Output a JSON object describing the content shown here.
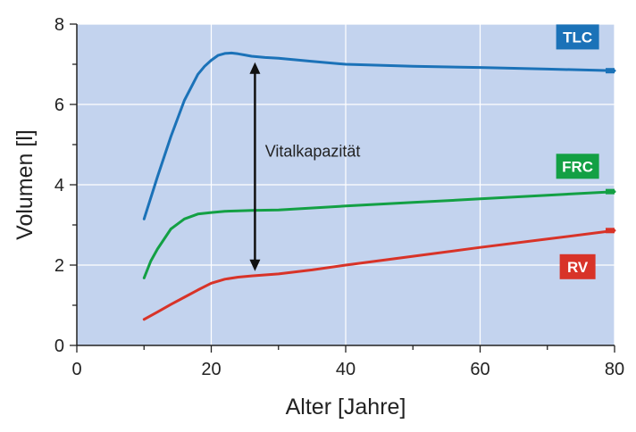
{
  "chart_data": {
    "type": "line",
    "xlabel": "Alter  [Jahre]",
    "ylabel": "Volumen [l]",
    "xlim": [
      0,
      80
    ],
    "ylim": [
      0,
      8
    ],
    "x_ticks": [
      0,
      20,
      40,
      60,
      80
    ],
    "y_ticks": [
      0,
      2,
      4,
      6,
      8
    ],
    "grid": true,
    "background": "#c3d3ee",
    "series": [
      {
        "name": "TLC",
        "color": "#1b72b8",
        "x": [
          10,
          12,
          14,
          16,
          18,
          19,
          20,
          21,
          22,
          23,
          24,
          25,
          26,
          28,
          30,
          35,
          40,
          50,
          60,
          70,
          80
        ],
        "y": [
          3.15,
          4.2,
          5.2,
          6.1,
          6.75,
          6.95,
          7.1,
          7.22,
          7.27,
          7.28,
          7.26,
          7.23,
          7.2,
          7.17,
          7.15,
          7.07,
          7.0,
          6.95,
          6.92,
          6.88,
          6.84
        ]
      },
      {
        "name": "FRC",
        "color": "#13a044",
        "x": [
          10,
          11,
          12,
          14,
          16,
          18,
          20,
          22,
          24,
          26,
          30,
          40,
          50,
          60,
          70,
          80
        ],
        "y": [
          1.68,
          2.1,
          2.4,
          2.9,
          3.15,
          3.27,
          3.31,
          3.34,
          3.35,
          3.36,
          3.37,
          3.47,
          3.56,
          3.65,
          3.74,
          3.83
        ]
      },
      {
        "name": "RV",
        "color": "#d83328",
        "x": [
          10,
          12,
          14,
          16,
          18,
          20,
          22,
          24,
          26,
          30,
          35,
          40,
          50,
          60,
          70,
          80
        ],
        "y": [
          0.65,
          0.83,
          1.02,
          1.2,
          1.38,
          1.55,
          1.65,
          1.7,
          1.73,
          1.78,
          1.88,
          2.0,
          2.22,
          2.44,
          2.65,
          2.86
        ]
      }
    ],
    "annotation": {
      "text": "Vitalkapazität",
      "x": 26.5,
      "y_top": 7.05,
      "y_bottom": 1.85,
      "label_x": 28,
      "label_y": 4.7
    },
    "labels": [
      {
        "text": "TLC",
        "series": "TLC",
        "x": 74.5,
        "y": 7.68
      },
      {
        "text": "FRC",
        "series": "FRC",
        "x": 74.5,
        "y": 4.46
      },
      {
        "text": "RV",
        "series": "RV",
        "x": 74.5,
        "y": 1.96
      }
    ]
  }
}
